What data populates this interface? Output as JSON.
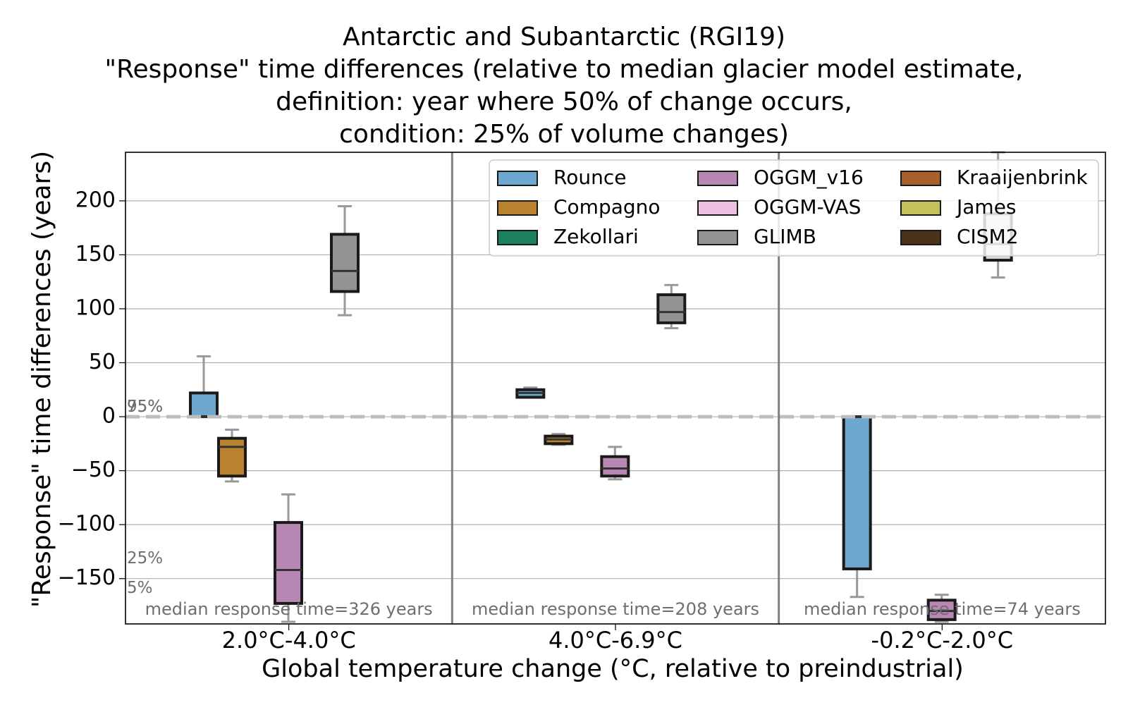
{
  "chart_data": {
    "type": "box",
    "title_lines": [
      "Antarctic and Subantarctic (RGI19)",
      "\"Response\" time differences (relative to median glacier model estimate,",
      "definition: year where 50% of change occurs,",
      "condition: 25% of volume changes)"
    ],
    "xlabel": "Global temperature change (°C, relative to preindustrial)",
    "ylabel": "\"Response\" time differences (years)",
    "ylim": [
      -192,
      245
    ],
    "yticks": [
      200,
      150,
      100,
      50,
      0,
      -50,
      -100,
      -150
    ],
    "ytick_labels": [
      "200",
      "150",
      "100",
      "50",
      "0",
      "−50",
      "−100",
      "−150"
    ],
    "grid": true,
    "legend_position": "top-right",
    "categories": [
      "2.0°C-4.0°C",
      "4.0°C-6.9°C",
      "-0.2°C-2.0°C"
    ],
    "median_labels": [
      "median response time=326 years",
      "median response time=208 years",
      "median response time=74 years"
    ],
    "percentile_labels": [
      "95%",
      "75%",
      "25%",
      "5%"
    ],
    "legend": [
      {
        "name": "Rounce",
        "color": "#6fa8cf"
      },
      {
        "name": "OGGM_v16",
        "color": "#b987b3"
      },
      {
        "name": "Kraaijenbrink",
        "color": "#a7612c"
      },
      {
        "name": "Compagno",
        "color": "#b8822e"
      },
      {
        "name": "OGGM-VAS",
        "color": "#ecc0e0"
      },
      {
        "name": "James",
        "color": "#c4c05a"
      },
      {
        "name": "Zekollari",
        "color": "#1c7f5f"
      },
      {
        "name": "GLIMB",
        "color": "#939393"
      },
      {
        "name": "CISM2",
        "color": "#4b331a"
      }
    ],
    "boxes": [
      {
        "category": 0,
        "model": "Rounce",
        "slot": 0,
        "whislo": 0,
        "q1": 0,
        "med": 0,
        "q3": 22,
        "whishi": 56
      },
      {
        "category": 0,
        "model": "Compagno",
        "slot": 1,
        "whislo": -60,
        "q1": -55,
        "med": -28,
        "q3": -20,
        "whishi": -12
      },
      {
        "category": 0,
        "model": "OGGM_v16",
        "slot": 3,
        "whislo": -190,
        "q1": -173,
        "med": -142,
        "q3": -98,
        "whishi": -72
      },
      {
        "category": 0,
        "model": "GLIMB",
        "slot": 5,
        "whislo": 94,
        "q1": 116,
        "med": 135,
        "q3": 169,
        "whishi": 195
      },
      {
        "category": 1,
        "model": "Rounce",
        "slot": 0,
        "whislo": 18,
        "q1": 18,
        "med": 22,
        "q3": 25,
        "whishi": 27
      },
      {
        "category": 1,
        "model": "Compagno",
        "slot": 1,
        "whislo": -26,
        "q1": -25,
        "med": -21,
        "q3": -18,
        "whishi": -16
      },
      {
        "category": 1,
        "model": "OGGM_v16",
        "slot": 3,
        "whislo": -58,
        "q1": -55,
        "med": -48,
        "q3": -37,
        "whishi": -28
      },
      {
        "category": 1,
        "model": "GLIMB",
        "slot": 5,
        "whislo": 82,
        "q1": 87,
        "med": 97,
        "q3": 113,
        "whishi": 122
      },
      {
        "category": 2,
        "model": "Rounce",
        "slot": 0,
        "whislo": -167,
        "q1": -141,
        "med": 0,
        "q3": 0,
        "whishi": 0
      },
      {
        "category": 2,
        "model": "OGGM_v16",
        "slot": 3,
        "whislo": -190,
        "q1": -188,
        "med": -180,
        "q3": -170,
        "whishi": -165
      },
      {
        "category": 2,
        "model": "GLIMB",
        "slot": 5,
        "whislo": 129,
        "q1": 145,
        "med": 160,
        "q3": 188,
        "whishi": 245,
        "color": "#d8d8d8"
      }
    ]
  }
}
